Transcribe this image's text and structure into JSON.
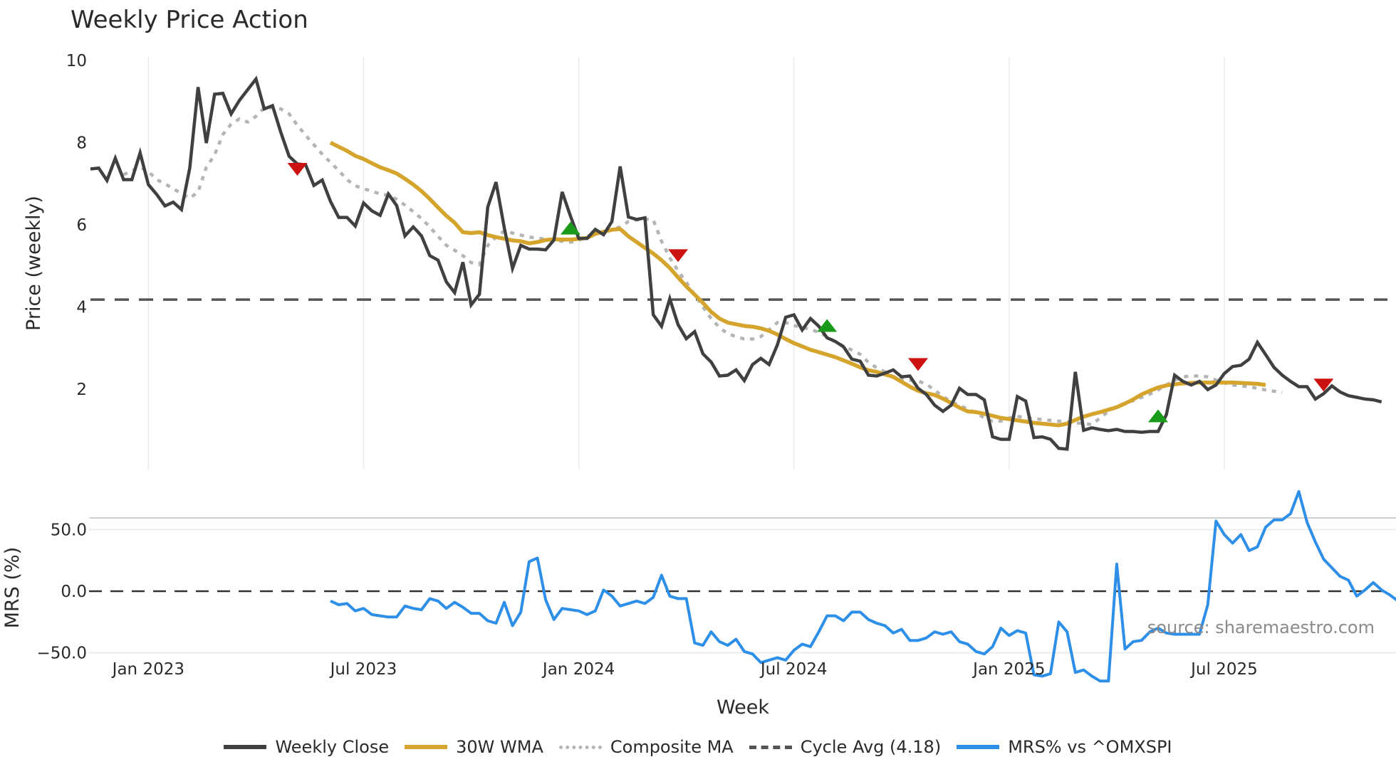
{
  "title": "Weekly Price Action",
  "source_note": "source: sharemaestro.com",
  "legend": [
    {
      "key": "close",
      "label": "Weekly Close",
      "color": "#404040"
    },
    {
      "key": "wma",
      "label": "30W WMA",
      "color": "#d4a42c"
    },
    {
      "key": "composite",
      "label": "Composite MA",
      "color": "#b4b4b4"
    },
    {
      "key": "cycle",
      "label": "Cycle Avg (4.18)",
      "color": "#555555"
    },
    {
      "key": "mrs",
      "label": "MRS% vs ^OMXSPI",
      "color": "#2e8fe8"
    }
  ],
  "chart_data": [
    {
      "type": "line",
      "title": "Weekly Price Action",
      "xlabel": "Week",
      "ylabel": "Price (weekly)",
      "ylim": [
        0,
        10
      ],
      "yticks": [
        2,
        4,
        6,
        8,
        10
      ],
      "xtick_labels": [
        "Jan 2023",
        "Jul 2023",
        "Jan 2024",
        "Jul 2024",
        "Jan 2025",
        "Jul 2025"
      ],
      "xtick_week_index": [
        7,
        33,
        59,
        85,
        111,
        137
      ],
      "grid": {
        "x": true,
        "y": false
      },
      "cycle_avg": 4.18,
      "x_start_week": "2022-11-14",
      "series": [
        {
          "name": "Weekly Close",
          "start_index": 0,
          "values": [
            7.36,
            7.38,
            7.08,
            7.62,
            7.1,
            7.1,
            7.75,
            6.98,
            6.74,
            6.46,
            6.55,
            6.37,
            7.38,
            9.35,
            7.99,
            9.18,
            9.2,
            8.7,
            9.03,
            9.29,
            9.55,
            8.82,
            8.9,
            8.25,
            7.67,
            7.48,
            7.46,
            6.96,
            7.09,
            6.57,
            6.18,
            6.18,
            5.97,
            6.53,
            6.34,
            6.23,
            6.75,
            6.47,
            5.73,
            5.95,
            5.73,
            5.25,
            5.14,
            4.61,
            4.35,
            5.09,
            4.05,
            4.31,
            6.43,
            7.04,
            5.93,
            4.94,
            5.5,
            5.41,
            5.41,
            5.39,
            5.63,
            6.8,
            6.21,
            5.67,
            5.67,
            5.89,
            5.76,
            6.08,
            7.42,
            6.19,
            6.13,
            6.17,
            3.81,
            3.53,
            4.2,
            3.57,
            3.23,
            3.4,
            2.86,
            2.66,
            2.32,
            2.34,
            2.47,
            2.21,
            2.6,
            2.75,
            2.6,
            3.08,
            3.75,
            3.81,
            3.44,
            3.72,
            3.53,
            3.25,
            3.16,
            3.03,
            2.73,
            2.68,
            2.34,
            2.32,
            2.39,
            2.47,
            2.3,
            2.32,
            2.02,
            1.87,
            1.61,
            1.46,
            1.61,
            2.02,
            1.87,
            1.87,
            1.74,
            0.84,
            0.78,
            0.78,
            1.82,
            1.71,
            0.82,
            0.84,
            0.78,
            0.56,
            0.54,
            2.42,
            1.0,
            1.06,
            1.02,
            0.99,
            1.02,
            0.97,
            0.97,
            0.95,
            0.97,
            0.97,
            1.38,
            2.34,
            2.19,
            2.1,
            2.19,
            1.99,
            2.1,
            2.38,
            2.55,
            2.58,
            2.73,
            3.14,
            2.84,
            2.53,
            2.34,
            2.19,
            2.06,
            2.06,
            1.76,
            1.89,
            2.08,
            1.93,
            1.84,
            1.8,
            1.76,
            1.74,
            1.69
          ]
        },
        {
          "name": "30W WMA",
          "start_index": 29,
          "values": [
            8.0,
            7.9,
            7.8,
            7.68,
            7.6,
            7.5,
            7.4,
            7.33,
            7.25,
            7.12,
            6.98,
            6.82,
            6.63,
            6.42,
            6.22,
            6.05,
            5.82,
            5.8,
            5.82,
            5.75,
            5.7,
            5.66,
            5.62,
            5.6,
            5.55,
            5.58,
            5.63,
            5.65,
            5.64,
            5.64,
            5.66,
            5.68,
            5.78,
            5.83,
            5.88,
            5.9,
            5.72,
            5.58,
            5.44,
            5.3,
            5.14,
            4.95,
            4.72,
            4.5,
            4.3,
            4.1,
            3.88,
            3.72,
            3.62,
            3.58,
            3.54,
            3.52,
            3.48,
            3.42,
            3.33,
            3.22,
            3.12,
            3.04,
            2.96,
            2.9,
            2.84,
            2.78,
            2.7,
            2.62,
            2.53,
            2.46,
            2.42,
            2.36,
            2.3,
            2.18,
            2.06,
            1.96,
            1.9,
            1.86,
            1.77,
            1.66,
            1.55,
            1.46,
            1.44,
            1.4,
            1.35,
            1.3,
            1.27,
            1.24,
            1.21,
            1.18,
            1.16,
            1.14,
            1.12,
            1.16,
            1.25,
            1.33,
            1.39,
            1.44,
            1.5,
            1.56,
            1.65,
            1.75,
            1.87,
            1.96,
            2.04,
            2.09,
            2.12,
            2.14,
            2.15,
            2.16,
            2.16,
            2.16,
            2.16,
            2.16,
            2.15,
            2.14,
            2.13,
            2.1
          ]
        },
        {
          "name": "Composite MA",
          "start_index": 4,
          "values": [
            7.22,
            7.32,
            7.4,
            7.3,
            7.1,
            7.0,
            6.88,
            6.76,
            6.65,
            6.8,
            7.4,
            7.7,
            8.2,
            8.45,
            8.58,
            8.5,
            8.64,
            8.85,
            8.85,
            8.82,
            8.7,
            8.42,
            8.18,
            7.95,
            7.72,
            7.52,
            7.32,
            7.1,
            6.95,
            6.88,
            6.82,
            6.75,
            6.72,
            6.62,
            6.48,
            6.32,
            6.15,
            5.95,
            5.72,
            5.5,
            5.38,
            5.25,
            5.08,
            5.03,
            5.5,
            5.7,
            5.85,
            5.8,
            5.75,
            5.7,
            5.68,
            5.65,
            5.62,
            5.6,
            5.58,
            5.62,
            5.72,
            5.8,
            5.82,
            5.88,
            5.95,
            6.08,
            6.12,
            6.14,
            6.12,
            5.6,
            5.2,
            4.88,
            4.6,
            4.3,
            4.0,
            3.72,
            3.5,
            3.35,
            3.28,
            3.22,
            3.22,
            3.28,
            3.45,
            3.62,
            3.62,
            3.55,
            3.5,
            3.46,
            3.38,
            3.28,
            3.15,
            3.05,
            2.95,
            2.85,
            2.65,
            2.52,
            2.42,
            2.3,
            2.25,
            2.22,
            2.2,
            2.12,
            1.98,
            1.82,
            1.7,
            1.6,
            1.52,
            1.42,
            1.3,
            1.22,
            1.22,
            1.3,
            1.34,
            1.3,
            1.28,
            1.26,
            1.24,
            1.22,
            1.21,
            1.18,
            1.16,
            1.14,
            1.3,
            1.46,
            1.58,
            1.66,
            1.72,
            1.8,
            1.88,
            1.98,
            2.1,
            2.22,
            2.3,
            2.32,
            2.32,
            2.3,
            2.22,
            2.15,
            2.1,
            2.08,
            2.06,
            2.02,
            1.98,
            1.95,
            1.92
          ]
        }
      ],
      "signals": [
        {
          "type": "sell",
          "week_index": 25,
          "value": 7.35,
          "color": "#cc1111"
        },
        {
          "type": "buy",
          "week_index": 58,
          "value": 5.92,
          "color": "#1a9a1a"
        },
        {
          "type": "sell",
          "week_index": 71,
          "value": 5.25,
          "color": "#cc1111"
        },
        {
          "type": "buy",
          "week_index": 89,
          "value": 3.55,
          "color": "#1a9a1a"
        },
        {
          "type": "sell",
          "week_index": 100,
          "value": 2.6,
          "color": "#cc1111"
        },
        {
          "type": "buy",
          "week_index": 129,
          "value": 1.35,
          "color": "#1a9a1a"
        },
        {
          "type": "sell",
          "week_index": 149,
          "value": 2.1,
          "color": "#cc1111"
        }
      ]
    },
    {
      "type": "line",
      "ylabel": "MRS (%)",
      "ylim": [
        -75,
        95
      ],
      "yticks": [
        50.0,
        0.0,
        -50.0
      ],
      "ytick_labels": [
        "50.0",
        "0.0",
        "−50.0"
      ],
      "zero_line": true,
      "series": [
        {
          "name": "MRS% vs ^OMXSPI",
          "start_index": 29,
          "values": [
            -8,
            -11,
            -10,
            -16,
            -14,
            -19,
            -20,
            -21,
            -21,
            -12,
            -14,
            -15,
            -6,
            -8,
            -14,
            -9,
            -13,
            -18,
            -18,
            -24,
            -26,
            -9,
            -28,
            -17,
            24,
            27,
            -7,
            -23,
            -14,
            -15,
            -16,
            -19,
            -16,
            1,
            -4,
            -12,
            -10,
            -8,
            -10,
            -5,
            13,
            -4,
            -6,
            -6,
            -42,
            -44,
            -33,
            -41,
            -44,
            -39,
            -49,
            -51,
            -58,
            -56,
            -54,
            -56,
            -48,
            -43,
            -45,
            -33,
            -20,
            -20,
            -24,
            -17,
            -17,
            -23,
            -26,
            -28,
            -34,
            -31,
            -40,
            -40,
            -38,
            -33,
            -35,
            -33,
            -41,
            -43,
            -49,
            -51,
            -45,
            -30,
            -36,
            -32,
            -34,
            -68,
            -69,
            -67,
            -25,
            -33,
            -66,
            -64,
            -69,
            -73,
            -73,
            22,
            -47,
            -41,
            -40,
            -33,
            -30,
            -34,
            -35,
            -35,
            -35,
            -35,
            -11,
            57,
            46,
            39,
            46,
            33,
            36,
            52,
            58,
            58,
            63,
            81,
            56,
            40,
            26,
            19,
            12,
            9,
            -4,
            1,
            7,
            1,
            -3,
            -8,
            -12,
            -11,
            -14
          ]
        }
      ]
    }
  ]
}
